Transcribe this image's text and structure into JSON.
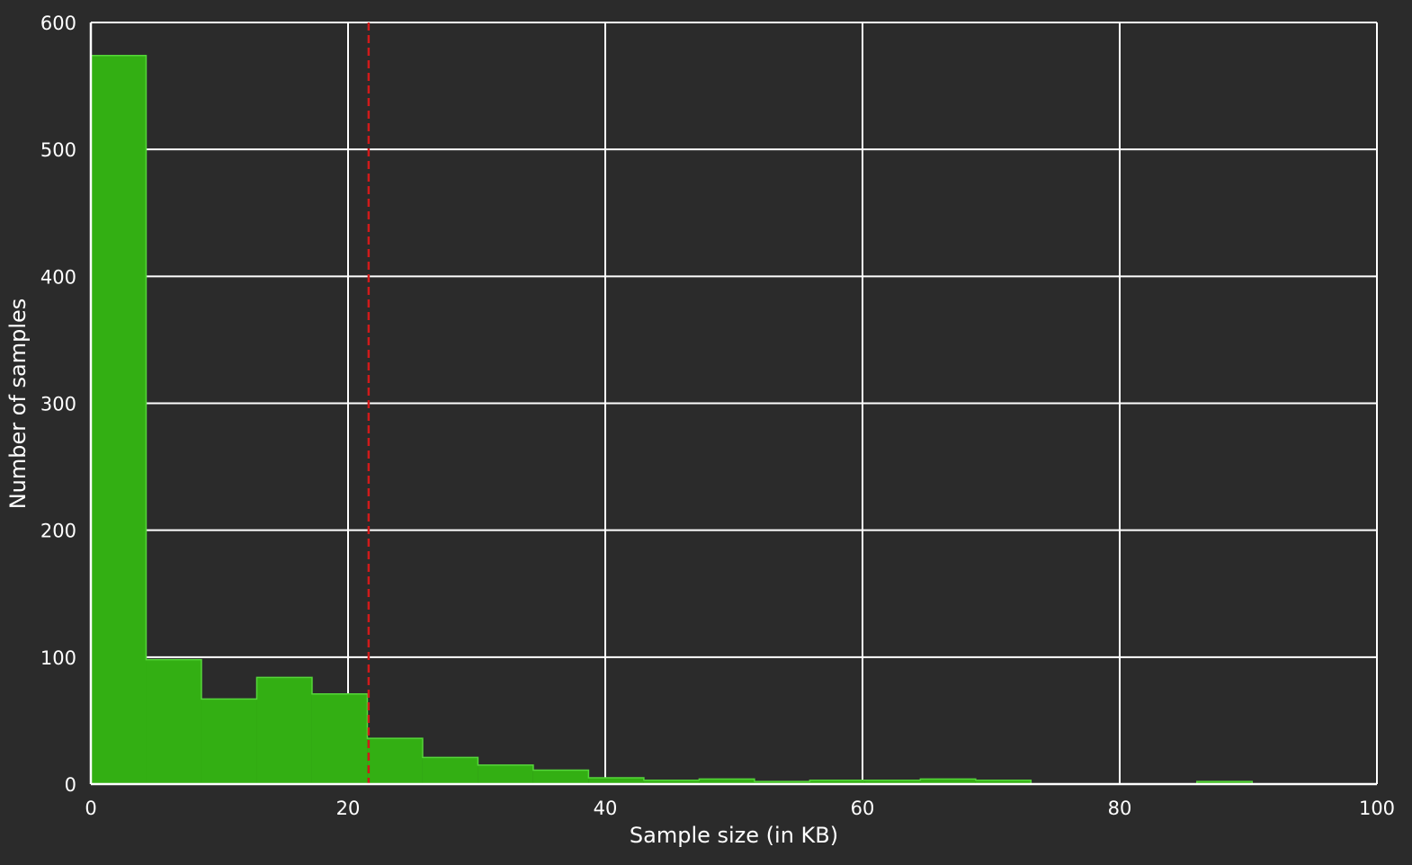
{
  "chart_data": {
    "type": "bar",
    "title": "",
    "xlabel": "Sample size (in KB)",
    "ylabel": "Number of samples",
    "xlim": [
      0,
      100
    ],
    "ylim": [
      0,
      600
    ],
    "x_ticks": [
      0,
      20,
      40,
      60,
      80,
      100
    ],
    "x_tick_labels": [
      "0",
      "20",
      "40",
      "60",
      "80",
      "100"
    ],
    "y_ticks": [
      0,
      100,
      200,
      300,
      400,
      500,
      600
    ],
    "y_tick_labels": [
      "0",
      "100",
      "200",
      "300",
      "400",
      "500",
      "600"
    ],
    "grid": true,
    "bins": [
      {
        "start": 0.0,
        "end": 4.3,
        "count": 574
      },
      {
        "start": 4.3,
        "end": 8.6,
        "count": 98
      },
      {
        "start": 8.6,
        "end": 12.9,
        "count": 67
      },
      {
        "start": 12.9,
        "end": 17.2,
        "count": 84
      },
      {
        "start": 17.2,
        "end": 21.5,
        "count": 71
      },
      {
        "start": 21.5,
        "end": 25.8,
        "count": 36
      },
      {
        "start": 25.8,
        "end": 30.1,
        "count": 21
      },
      {
        "start": 30.1,
        "end": 34.4,
        "count": 15
      },
      {
        "start": 34.4,
        "end": 38.7,
        "count": 11
      },
      {
        "start": 38.7,
        "end": 43.0,
        "count": 5
      },
      {
        "start": 43.0,
        "end": 47.3,
        "count": 3
      },
      {
        "start": 47.3,
        "end": 51.6,
        "count": 4
      },
      {
        "start": 51.6,
        "end": 55.9,
        "count": 2
      },
      {
        "start": 55.9,
        "end": 60.2,
        "count": 3
      },
      {
        "start": 60.2,
        "end": 64.5,
        "count": 3
      },
      {
        "start": 64.5,
        "end": 68.8,
        "count": 4
      },
      {
        "start": 68.8,
        "end": 73.1,
        "count": 3
      },
      {
        "start": 73.1,
        "end": 77.4,
        "count": 0
      },
      {
        "start": 77.4,
        "end": 81.7,
        "count": 0
      },
      {
        "start": 81.7,
        "end": 86.0,
        "count": 0
      },
      {
        "start": 86.0,
        "end": 90.3,
        "count": 2
      }
    ],
    "reference_line": {
      "x": 21.6,
      "style": "dashed"
    },
    "colors": {
      "background": "#2b2b2b",
      "bar_fill": "#33af13",
      "bar_edge": "#55d63a",
      "grid": "#ffffff",
      "reference_line": "#d11a1a",
      "text": "#ffffff"
    }
  }
}
